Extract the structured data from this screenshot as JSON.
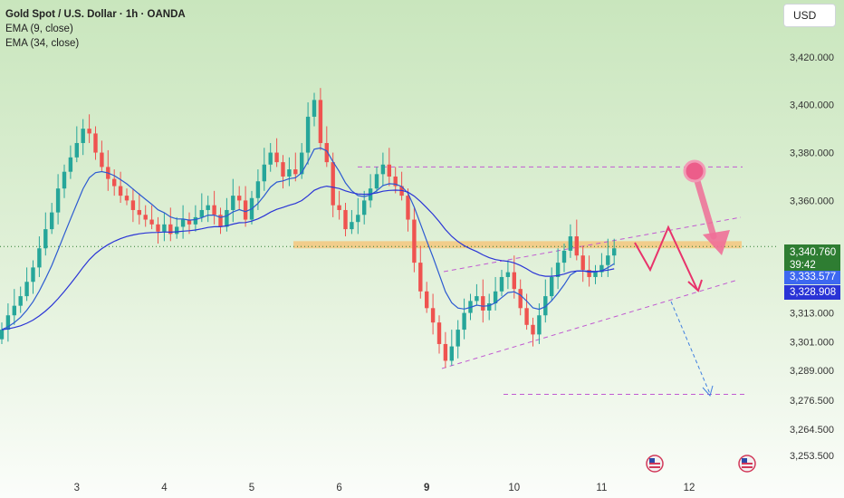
{
  "legend": {
    "title": "Gold Spot / U.S. Dollar · 1h · OANDA",
    "ema9": "EMA (9, close)",
    "ema34": "EMA (34, close)"
  },
  "currency_button": "USD",
  "price_tags": {
    "last_price": "3,340.760",
    "countdown": "39:42",
    "ema9_value": "3,333.577",
    "ema34_value": "3,328.908"
  },
  "colors": {
    "bull": "#26a69a",
    "bear": "#ef5350",
    "ema": "#2d5bd1",
    "zone": "#f5c77e",
    "pattern": "#c15ad1",
    "arrow": "#e8336b",
    "projection": "#3f7fe0",
    "last_price_tag": "#2e7d32",
    "ema_tag_1": "#3d68f0",
    "ema_tag_2": "#2a34d6"
  },
  "chart_data": {
    "type": "candlestick",
    "instrument": "Gold Spot / U.S. Dollar",
    "interval": "1h",
    "source": "OANDA",
    "ylim": [
      3247,
      3440
    ],
    "y_ticks": [
      "3,420.000",
      "3,400.000",
      "3,380.000",
      "3,360.000",
      "3,340.760",
      "3,313.000",
      "3,301.000",
      "3,289.000",
      "3,276.500",
      "3,264.500",
      "3,253.500"
    ],
    "y_tick_values": [
      3420,
      3400,
      3380,
      3360,
      3340.76,
      3313,
      3301,
      3289,
      3276.5,
      3264.5,
      3253.5
    ],
    "x_ticks": [
      "3",
      "4",
      "5",
      "6",
      "9",
      "10",
      "11",
      "12"
    ],
    "x_tick_index": [
      12,
      26,
      40,
      54,
      68,
      82,
      96,
      110
    ],
    "closes": [
      3306,
      3312,
      3316,
      3320,
      3326,
      3332,
      3340,
      3348,
      3355,
      3365,
      3372,
      3378,
      3384,
      3390,
      3388,
      3380,
      3374,
      3369,
      3366,
      3362,
      3360,
      3356,
      3354,
      3352,
      3350,
      3347,
      3350,
      3346,
      3349,
      3352,
      3350,
      3353,
      3356,
      3358,
      3354,
      3349,
      3356,
      3362,
      3360,
      3352,
      3361,
      3368,
      3375,
      3380,
      3376,
      3370,
      3373,
      3371,
      3380,
      3395,
      3402,
      3384,
      3376,
      3358,
      3356,
      3348,
      3351,
      3354,
      3360,
      3365,
      3371,
      3375,
      3370,
      3366,
      3362,
      3352,
      3334,
      3322,
      3315,
      3309,
      3300,
      3293,
      3299,
      3306,
      3313,
      3318,
      3320,
      3314,
      3317,
      3322,
      3328,
      3330,
      3323,
      3315,
      3308,
      3304,
      3312,
      3320,
      3328,
      3334,
      3339,
      3345,
      3337,
      3331,
      3328,
      3330,
      3333,
      3337,
      3340
    ],
    "ema9_label": "EMA (9, close)",
    "ema34_label": "EMA (34, close)",
    "last_price": 3340.76,
    "ema9_last": 3333.577,
    "ema34_last": 3328.908,
    "resistance_zone": [
      3340,
      3343
    ],
    "upper_dashed_level": 3374,
    "lower_dashed_level": 3279,
    "grid": false
  }
}
